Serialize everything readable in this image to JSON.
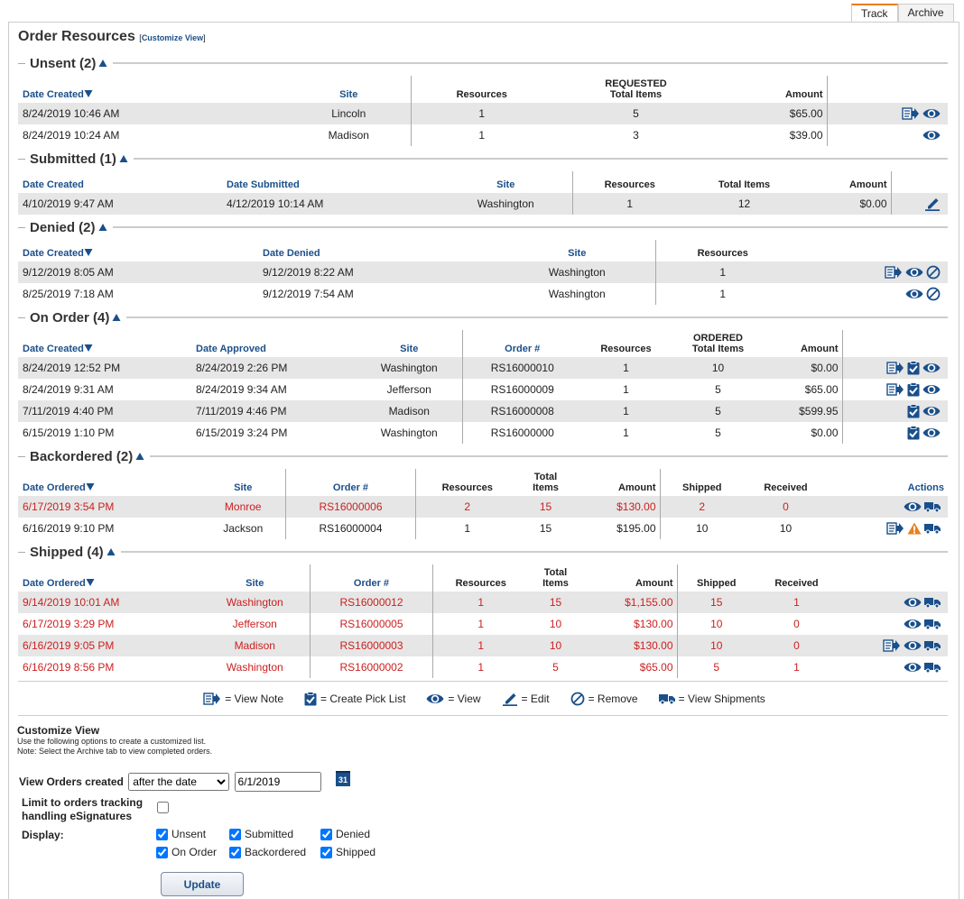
{
  "tabs": [
    {
      "label": "Track",
      "active": true
    },
    {
      "label": "Archive",
      "active": false
    }
  ],
  "header": {
    "title": "Order Resources",
    "link_open": "[",
    "link": "Customize View",
    "link_close": "]"
  },
  "sections": [
    {
      "title": "Unsent (2)",
      "columns": [
        {
          "label": "Date Created",
          "link": true,
          "sorted": true
        },
        {
          "label": "Site",
          "link": true
        },
        {
          "label": "Resources"
        },
        {
          "over": "REQUESTED",
          "label": "Total Items"
        },
        {
          "label": "Amount"
        }
      ],
      "rows": [
        {
          "cells": [
            "8/24/2019 10:46 AM",
            "Lincoln",
            1,
            5,
            "$65.00"
          ]
        },
        {
          "cells": [
            "8/24/2019 10:24 AM",
            "Madison",
            1,
            3,
            "$39.00"
          ]
        }
      ]
    },
    {
      "title": "Submitted (1)",
      "columns": [
        {
          "label": "Date Created",
          "link": true,
          "sorted": false
        },
        {
          "label": "Date Submitted",
          "link": true
        },
        {
          "label": "Site",
          "link": true
        },
        {
          "label": "Resources"
        },
        {
          "label": "Total Items"
        },
        {
          "label": "Amount"
        }
      ],
      "rows": [
        {
          "cells": [
            "4/10/2019 9:47 AM",
            "4/12/2019 10:14 AM",
            "Washington",
            1,
            12,
            "$0.00"
          ]
        }
      ]
    },
    {
      "title": "Denied (2)",
      "columns": [
        {
          "label": "Date Created",
          "link": true,
          "sorted": true
        },
        {
          "label": "Date Denied",
          "link": true
        },
        {
          "label": "Site",
          "link": true
        },
        {
          "label": "Resources"
        }
      ],
      "rows": [
        {
          "cells": [
            "9/12/2019 8:05 AM",
            "9/12/2019 8:22 AM",
            "Washington",
            1
          ]
        },
        {
          "cells": [
            "8/25/2019 7:18 AM",
            "9/12/2019 7:54 AM",
            "Washington",
            1
          ]
        }
      ]
    },
    {
      "title": "On Order (4)",
      "columns": [
        {
          "label": "Date Created",
          "link": true,
          "sorted": true
        },
        {
          "label": "Date Approved",
          "link": true
        },
        {
          "label": "Site",
          "link": true
        },
        {
          "label": "Order #",
          "link": true
        },
        {
          "label": "Resources"
        },
        {
          "over": "ORDERED",
          "label": "Total Items"
        },
        {
          "label": "Amount"
        }
      ],
      "rows": [
        {
          "cells": [
            "8/24/2019 12:52 PM",
            "8/24/2019 2:26 PM",
            "Washington",
            "RS16000010",
            1,
            10,
            "$0.00"
          ]
        },
        {
          "cells": [
            "8/24/2019 9:31 AM",
            "8/24/2019 9:34 AM",
            "Jefferson",
            "RS16000009",
            1,
            5,
            "$65.00"
          ]
        },
        {
          "cells": [
            "7/11/2019 4:40 PM",
            "7/11/2019 4:46 PM",
            "Madison",
            "RS16000008",
            1,
            5,
            "$599.95"
          ]
        },
        {
          "cells": [
            "6/15/2019 1:10 PM",
            "6/15/2019 3:24 PM",
            "Washington",
            "RS16000000",
            1,
            5,
            "$0.00"
          ]
        }
      ]
    },
    {
      "title": "Backordered (2)",
      "columns": [
        {
          "label": "Date Ordered",
          "link": true,
          "sorted": true
        },
        {
          "label": "Site",
          "link": true
        },
        {
          "label": "Order #",
          "link": true
        },
        {
          "label": "Resources"
        },
        {
          "over": "Total",
          "label": "Items"
        },
        {
          "label": "Amount"
        },
        {
          "label": "Shipped"
        },
        {
          "label": "Received"
        },
        {
          "label": "Actions",
          "link": true
        }
      ],
      "rows": [
        {
          "cells": [
            "6/17/2019 3:54 PM",
            "Monroe",
            "RS16000006",
            2,
            15,
            "$130.00",
            2,
            0
          ],
          "color": "#cc2020"
        },
        {
          "cells": [
            "6/16/2019 9:10 PM",
            "Jackson",
            "RS16000004",
            1,
            15,
            "$195.00",
            10,
            10
          ]
        }
      ]
    },
    {
      "title": "Shipped (4)",
      "columns": [
        {
          "label": "Date Ordered",
          "link": true,
          "sorted": true
        },
        {
          "label": "Site",
          "link": true
        },
        {
          "label": "Order #",
          "link": true
        },
        {
          "label": "Resources"
        },
        {
          "over": "Total",
          "label": "Items"
        },
        {
          "label": "Amount"
        },
        {
          "label": "Shipped"
        },
        {
          "label": "Received"
        }
      ],
      "rows": [
        {
          "cells": [
            "9/14/2019 10:01 AM",
            "Washington",
            "RS16000012",
            1,
            15,
            "$1,155.00",
            15,
            1
          ],
          "color": "#cc2020"
        },
        {
          "cells": [
            "6/17/2019 3:29 PM",
            "Jefferson",
            "RS16000005",
            1,
            10,
            "$130.00",
            10,
            0
          ],
          "color": "#cc2020"
        },
        {
          "cells": [
            "6/16/2019 9:05 PM",
            "Madison",
            "RS16000003",
            1,
            10,
            "$130.00",
            10,
            0
          ],
          "color": "#cc2020"
        },
        {
          "cells": [
            "6/16/2019 8:56 PM",
            "Washington",
            "RS16000002",
            1,
            5,
            "$65.00",
            5,
            1
          ],
          "color": "#cc2020"
        }
      ]
    }
  ],
  "legend": [
    "= View Note",
    "= Create Pick List",
    "= View",
    "= Edit",
    "= Remove",
    "= View Shipments"
  ],
  "customize": {
    "title": "Customize View",
    "notes": [
      "Use the following options to create a customized list.",
      "Note: Select the Archive tab to view completed orders."
    ],
    "created_label": "View Orders created",
    "created_option": "after the date",
    "created_date": "6/1/2019",
    "calendar": "31",
    "esign_label": "Limit to orders tracking handling eSignatures",
    "esign_checked": false,
    "display_label": "Display:",
    "display": [
      {
        "label": "Unsent",
        "checked": true
      },
      {
        "label": "Submitted",
        "checked": true
      },
      {
        "label": "Denied",
        "checked": true
      },
      {
        "label": "On Order",
        "checked": true
      },
      {
        "label": "Backordered",
        "checked": true
      },
      {
        "label": "Shipped",
        "checked": true
      }
    ],
    "button": "Update"
  }
}
